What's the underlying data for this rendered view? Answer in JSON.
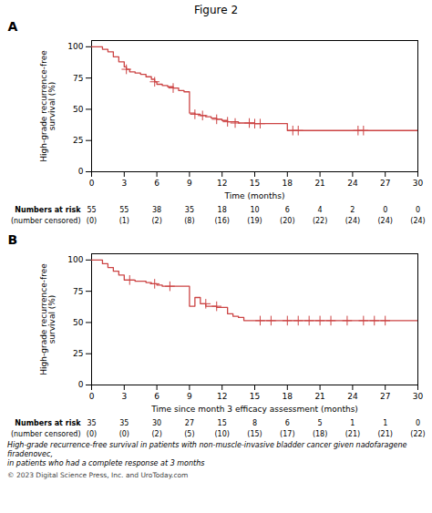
{
  "title": "Figure 2",
  "chart_data": [
    {
      "type": "line",
      "title": "A",
      "ylabel": "High-grade recurrence-free survival (%)",
      "xlabel": "Time (months)",
      "xlim": [
        0,
        30
      ],
      "ylim": [
        0,
        105
      ],
      "xticks": [
        0,
        3,
        6,
        9,
        12,
        15,
        18,
        21,
        24,
        27,
        30
      ],
      "yticks": [
        0,
        25,
        50,
        75,
        100
      ],
      "grid": false,
      "series": [
        {
          "type": "step",
          "color": "#cc4444",
          "x": [
            0,
            0.5,
            1.0,
            1.5,
            2.0,
            2.5,
            3.0,
            3.2,
            3.5,
            4.0,
            4.5,
            5.0,
            5.5,
            5.8,
            6.0,
            6.5,
            7.0,
            7.5,
            8.0,
            8.5,
            9.0,
            9.5,
            10.0,
            10.5,
            11.0,
            11.5,
            12.0,
            12.5,
            13.0,
            13.5,
            14.0,
            14.5,
            15.0,
            15.5,
            16.0,
            17.0,
            17.5,
            18.0,
            24.0,
            24.5,
            25.0,
            29.0,
            30.0
          ],
          "values": [
            100,
            100,
            98,
            96,
            92,
            88,
            84,
            82,
            80,
            79,
            78,
            76,
            74,
            72,
            70,
            69,
            68,
            67,
            65,
            64,
            47,
            46,
            45,
            44,
            43,
            42,
            41,
            40,
            40,
            39,
            39,
            39,
            38.5,
            38.5,
            38.5,
            38.5,
            38.5,
            33,
            33,
            33,
            33,
            33,
            33
          ]
        },
        {
          "type": "scatter",
          "marker": "+",
          "color": "#cc4444",
          "x": [
            3.2,
            5.8,
            7.5,
            9.5,
            10.2,
            11.5,
            12.5,
            13.2,
            14.5,
            15.0,
            15.5,
            18.5,
            19.0,
            24.5,
            25.0
          ],
          "values": [
            82,
            72,
            67,
            46,
            45,
            42,
            40,
            39,
            39,
            38.5,
            38.5,
            33,
            33,
            33,
            33
          ]
        }
      ],
      "risk_table": {
        "x": [
          0,
          3,
          6,
          9,
          12,
          15,
          18,
          21,
          24,
          27,
          30
        ],
        "rows": [
          {
            "label": "Numbers at risk",
            "values": [
              55,
              55,
              38,
              35,
              18,
              10,
              6,
              4,
              2,
              0,
              0
            ]
          },
          {
            "label": "(number censored)",
            "values": [
              0,
              1,
              2,
              8,
              16,
              19,
              20,
              22,
              24,
              24,
              24
            ],
            "value_labels": [
              "(0)",
              "(1)",
              "(2)",
              "(8)",
              "(16)",
              "(19)",
              "(20)",
              "(22)",
              "(24)",
              "(24)",
              "(24)"
            ]
          }
        ]
      }
    },
    {
      "type": "line",
      "title": "B",
      "ylabel": "High-grade recurrence-free survival (%)",
      "xlabel": "Time since month 3 efficacy assessment (months)",
      "xlim": [
        0,
        30
      ],
      "ylim": [
        0,
        105
      ],
      "xticks": [
        0,
        3,
        6,
        9,
        12,
        15,
        18,
        21,
        24,
        27,
        30
      ],
      "yticks": [
        0,
        25,
        50,
        75,
        100
      ],
      "grid": false,
      "series": [
        {
          "type": "step",
          "color": "#cc4444",
          "x": [
            0,
            0.5,
            1.0,
            1.5,
            2.0,
            2.5,
            3.0,
            3.5,
            4.0,
            5.0,
            5.5,
            6.0,
            6.5,
            7.0,
            7.5,
            8.0,
            9.0,
            9.5,
            10.0,
            10.5,
            11.0,
            11.5,
            12.0,
            12.5,
            13.0,
            13.5,
            14.0,
            14.5,
            15.0,
            16.0,
            17.0,
            18.0,
            29.0,
            30.0
          ],
          "values": [
            100,
            100,
            97,
            94,
            91,
            88,
            84,
            84,
            83,
            82,
            81,
            80,
            79,
            79,
            79,
            79,
            63,
            70,
            65,
            63,
            63,
            62,
            62,
            57,
            55,
            54,
            51.5,
            51.5,
            51.5,
            51.5,
            51.5,
            51.5,
            51.5,
            51.5
          ]
        },
        {
          "type": "scatter",
          "marker": "+",
          "color": "#cc4444",
          "x": [
            3.5,
            5.8,
            7.2,
            10.5,
            11.5,
            15.5,
            16.5,
            18.0,
            19.0,
            20.0,
            21.0,
            22.0,
            23.5,
            25.0,
            26.0,
            27.0
          ],
          "values": [
            84,
            81,
            79,
            65,
            63,
            51.5,
            51.5,
            51.5,
            51.5,
            51.5,
            51.5,
            51.5,
            51.5,
            51.5,
            51.5,
            51.5
          ]
        }
      ],
      "risk_table": {
        "x": [
          0,
          3,
          6,
          9,
          12,
          15,
          18,
          21,
          24,
          27,
          30
        ],
        "rows": [
          {
            "label": "Numbers at risk",
            "values": [
              35,
              35,
              30,
              27,
              15,
              8,
              6,
              5,
              1,
              1,
              0
            ]
          },
          {
            "label": "(number censored)",
            "values": [
              0,
              0,
              2,
              5,
              10,
              15,
              17,
              18,
              21,
              21,
              22
            ],
            "value_labels": [
              "(0)",
              "(0)",
              "(2)",
              "(5)",
              "(10)",
              "(15)",
              "(17)",
              "(18)",
              "(21)",
              "(21)",
              "(22)"
            ]
          }
        ]
      }
    }
  ],
  "caption": [
    "High-grade recurrence-free survival in patients with non-muscle-invasive bladder cancer given nadofaragene firadenovec,",
    "in patients who had a complete response at 3 months"
  ],
  "footnote": "© 2023 Digital Science Press, Inc. and UroToday.com"
}
